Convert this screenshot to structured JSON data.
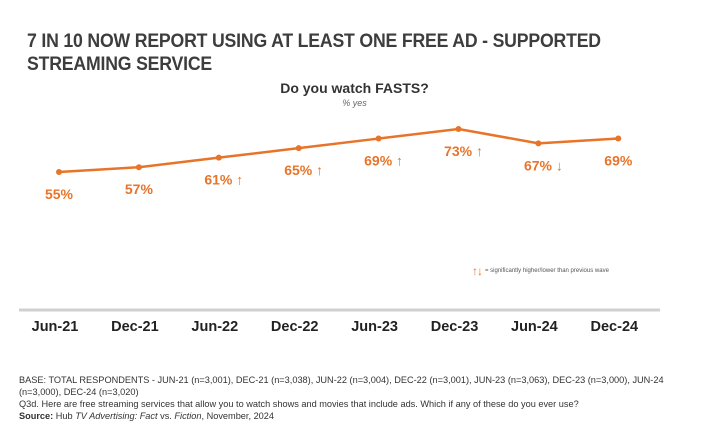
{
  "title": "7 IN 10 NOW REPORT USING AT LEAST ONE FREE AD - SUPPORTED STREAMING SERVICE",
  "chart_data": {
    "type": "line",
    "title": "Do you watch FASTS?",
    "subtitle": "% yes",
    "categories": [
      "Jun-21",
      "Dec-21",
      "Jun-22",
      "Dec-22",
      "Jun-23",
      "Dec-23",
      "Jun-24",
      "Dec-24"
    ],
    "values": [
      55,
      57,
      61,
      65,
      69,
      73,
      67,
      69
    ],
    "labels": [
      "55%",
      "57%",
      "61%",
      "65%",
      "69%",
      "73%",
      "67%",
      "69%"
    ],
    "significance": [
      "",
      "",
      "up",
      "up",
      "up",
      "up",
      "down",
      ""
    ],
    "ylim": [
      55,
      73
    ],
    "color": "#e8742a",
    "legend_text": "= significantly higher/lower than previous wave"
  },
  "footnote": {
    "base": "BASE: TOTAL RESPONDENTS - JUN-21 (n=3,001), DEC-21 (n=3,038), JUN-22 (n=3,004), DEC-22 (n=3,001), JUN-23 (n=3,063), DEC-23 (n=3,000), JUN-24 (n=3,000), DEC-24 (n=3,020)",
    "question": "Q3d. Here are free streaming services that allow you to watch shows and movies that include ads. Which if any of these do you ever use?",
    "source_label": "Source:",
    "source_pre": " Hub ",
    "source_italic1": "TV Advertising: Fact",
    "source_mid": " vs. ",
    "source_italic2": "Fiction",
    "source_post": ", November, 2024"
  }
}
